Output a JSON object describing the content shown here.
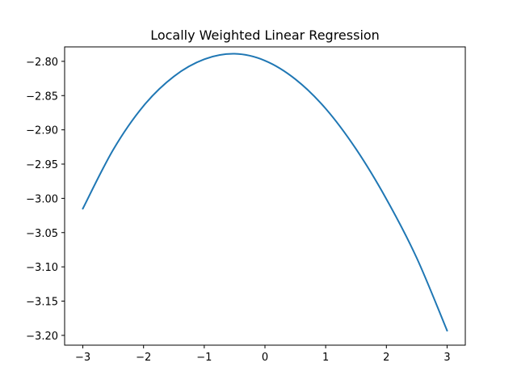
{
  "chart_data": {
    "type": "line",
    "title": "Locally Weighted Linear Regression",
    "xlabel": "",
    "ylabel": "",
    "xlim": [
      -3.3,
      3.3
    ],
    "ylim": [
      -3.2143,
      -2.7789
    ],
    "x_ticks": [
      -3,
      -2,
      -1,
      0,
      1,
      2,
      3
    ],
    "x_tick_labels": [
      "−3",
      "−2",
      "−1",
      "0",
      "1",
      "2",
      "3"
    ],
    "y_ticks": [
      -2.8,
      -2.85,
      -2.9,
      -2.95,
      -3.0,
      -3.05,
      -3.1,
      -3.15,
      -3.2
    ],
    "y_tick_labels": [
      "−2.80",
      "−2.85",
      "−2.90",
      "−2.95",
      "−3.00",
      "−3.05",
      "−3.10",
      "−3.15",
      "−3.20"
    ],
    "grid": false,
    "series": [
      {
        "color": "#1f77b4",
        "x": [
          -3.0,
          -2.5,
          -2.0,
          -1.5,
          -1.0,
          -0.5,
          0.0,
          0.5,
          1.0,
          1.5,
          2.0,
          2.5,
          3.0
        ],
        "y": [
          -3.015,
          -2.929,
          -2.865,
          -2.822,
          -2.797,
          -2.789,
          -2.799,
          -2.826,
          -2.869,
          -2.928,
          -3.001,
          -3.087,
          -3.193
        ]
      }
    ]
  }
}
